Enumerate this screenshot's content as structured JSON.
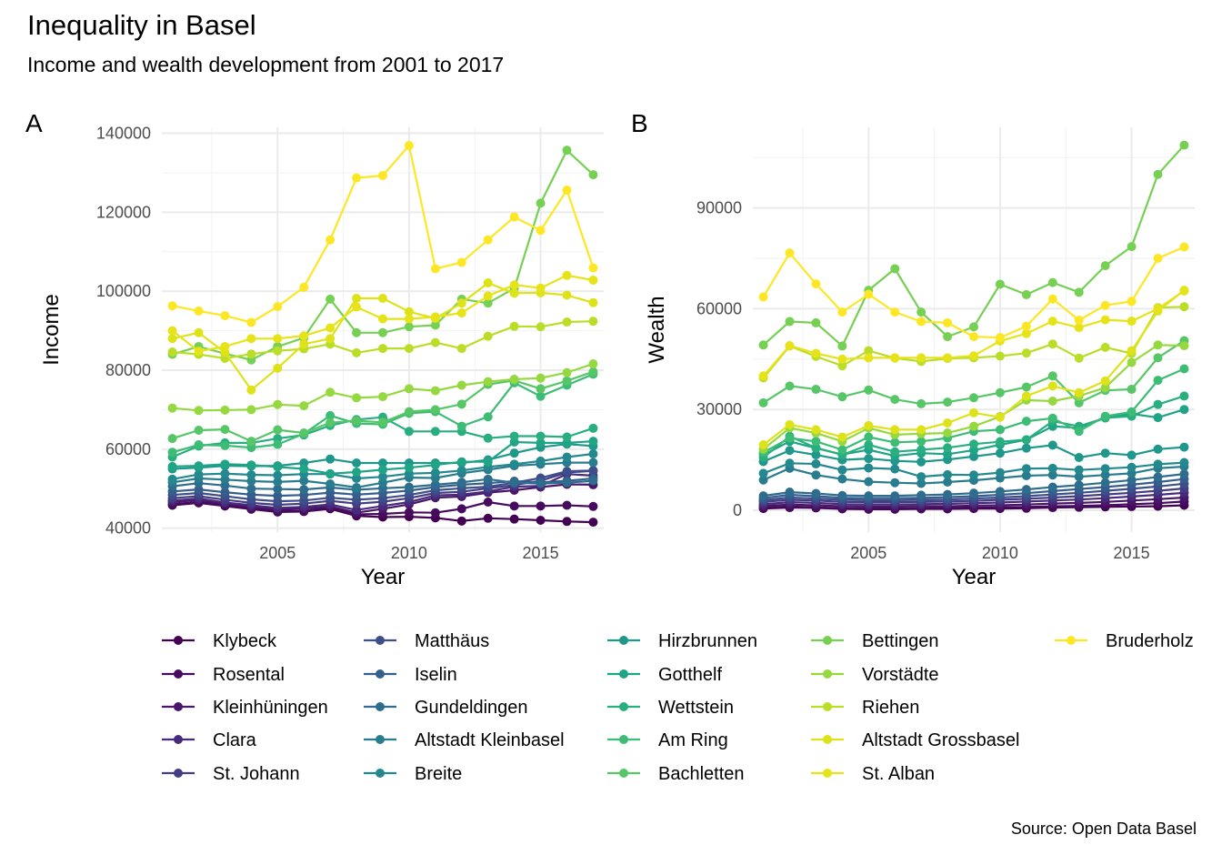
{
  "title": "Inequality in Basel",
  "subtitle": "Income and wealth development from 2001 to 2017",
  "caption": "Source: Open Data Basel",
  "chart_data": [
    {
      "tag": "A",
      "type": "line",
      "xlabel": "Year",
      "ylabel": "Income",
      "xlim": [
        2000.6,
        2017.4
      ],
      "ylim": [
        39000,
        141500
      ],
      "xticks": [
        2005,
        2010,
        2015
      ],
      "yticks": [
        40000,
        60000,
        80000,
        100000,
        120000,
        140000
      ],
      "ytick_labels": [
        "40000",
        "60000",
        "80000",
        "100000",
        "120000",
        "140000"
      ],
      "x": [
        2001,
        2002,
        2003,
        2004,
        2005,
        2006,
        2007,
        2008,
        2009,
        2010,
        2011,
        2012,
        2013,
        2014,
        2015,
        2016,
        2017
      ],
      "series": [
        {
          "name": "Klybeck",
          "values": [
            45800,
            46400,
            45600,
            44800,
            44100,
            44200,
            44900,
            43100,
            42800,
            42900,
            42600,
            41800,
            42500,
            42300,
            42000,
            41700,
            41500
          ]
        },
        {
          "name": "Rosental",
          "values": [
            46100,
            46600,
            45900,
            45000,
            44400,
            44400,
            45200,
            43500,
            43600,
            44000,
            43900,
            44900,
            46600,
            45600,
            45600,
            45800,
            45500
          ]
        },
        {
          "name": "Kleinhüningen",
          "values": [
            46600,
            47100,
            46200,
            45400,
            44800,
            45000,
            45500,
            43900,
            44900,
            46000,
            47700,
            48000,
            49000,
            49600,
            50400,
            51100,
            51000
          ]
        },
        {
          "name": "Clara",
          "values": [
            47000,
            47500,
            46500,
            45800,
            45100,
            45400,
            46000,
            44600,
            45600,
            46600,
            48300,
            48500,
            49300,
            50500,
            50700,
            53700,
            53300
          ]
        },
        {
          "name": "St. Johann",
          "values": [
            47600,
            48100,
            47200,
            46400,
            45900,
            46200,
            46900,
            46200,
            46700,
            47600,
            48900,
            49200,
            50100,
            50900,
            52000,
            54100,
            54500
          ]
        },
        {
          "name": "Matthäus",
          "values": [
            48400,
            48900,
            48100,
            47300,
            46800,
            47000,
            47700,
            47200,
            47600,
            48400,
            49600,
            50100,
            50500,
            51500,
            52700,
            54400,
            54600
          ]
        },
        {
          "name": "Iselin",
          "values": [
            49300,
            49800,
            49100,
            48500,
            48200,
            48400,
            49000,
            48500,
            48900,
            49500,
            50400,
            51000,
            51400,
            51900,
            51600,
            52000,
            52600
          ]
        },
        {
          "name": "Gundeldingen",
          "values": [
            50600,
            51400,
            50800,
            50000,
            49900,
            49800,
            50300,
            49700,
            50100,
            50400,
            51000,
            51600,
            52400,
            51500,
            51300,
            51500,
            52000
          ]
        },
        {
          "name": "Altstadt Kleinbasel",
          "values": [
            51600,
            52600,
            52300,
            51900,
            51700,
            52000,
            51200,
            50300,
            51500,
            52800,
            52700,
            53900,
            54800,
            55800,
            56200,
            56600,
            56600
          ]
        },
        {
          "name": "Breite",
          "values": [
            52400,
            53600,
            53800,
            53500,
            53400,
            53700,
            53700,
            52600,
            53000,
            53800,
            54000,
            54600,
            55500,
            56200,
            57000,
            58000,
            58800
          ]
        },
        {
          "name": "Hirzbrunnen",
          "values": [
            55000,
            55300,
            55800,
            55700,
            55800,
            56500,
            57500,
            56500,
            56500,
            56500,
            56500,
            56500,
            57300,
            59000,
            60500,
            61300,
            60800
          ]
        },
        {
          "name": "Gotthelf",
          "values": [
            55600,
            55800,
            56200,
            56000,
            55500,
            55000,
            53800,
            54200,
            54800,
            55300,
            56000,
            56800,
            56800,
            61800,
            61600,
            61600,
            62000
          ]
        },
        {
          "name": "Wettstein",
          "values": [
            58000,
            60800,
            61600,
            61600,
            62700,
            63600,
            66000,
            67500,
            68100,
            64500,
            64500,
            64500,
            62800,
            63300,
            63300,
            63100,
            65300
          ]
        },
        {
          "name": "Am Ring",
          "values": [
            59200,
            61100,
            60900,
            60400,
            61200,
            63900,
            68500,
            66500,
            66300,
            69100,
            69500,
            65800,
            68200,
            76800,
            73400,
            76200,
            79000
          ]
        },
        {
          "name": "Bachletten",
          "values": [
            62700,
            64800,
            65000,
            62000,
            64900,
            64100,
            66700,
            67200,
            66800,
            69500,
            70000,
            71400,
            76400,
            77400,
            75300,
            77300,
            79600
          ]
        },
        {
          "name": "Bettingen",
          "values": [
            84000,
            86000,
            84200,
            82600,
            86000,
            88200,
            98000,
            89500,
            89500,
            91000,
            91400,
            98000,
            97000,
            100700,
            122300,
            135700,
            129500
          ]
        },
        {
          "name": "Vorstädte",
          "values": [
            70400,
            69800,
            69900,
            70000,
            71300,
            71000,
            74400,
            73000,
            73300,
            75300,
            74800,
            76200,
            77100,
            77700,
            78000,
            79400,
            81600
          ]
        },
        {
          "name": "Riehen",
          "values": [
            84600,
            84000,
            83000,
            84100,
            84900,
            85400,
            86600,
            84400,
            85500,
            85500,
            87000,
            85500,
            88600,
            91100,
            91000,
            92200,
            92400
          ]
        },
        {
          "name": "Altstadt Grossbasel",
          "values": [
            88000,
            89500,
            84500,
            75000,
            80500,
            86600,
            88000,
            98200,
            98200,
            94800,
            93100,
            97000,
            102100,
            99500,
            99600,
            99000,
            97100
          ]
        },
        {
          "name": "St. Albán",
          "values": [
            90000,
            84800,
            86000,
            88000,
            88000,
            88700,
            90700,
            96000,
            93000,
            93000,
            93500,
            94500,
            98800,
            101600,
            100800,
            104000,
            102800
          ]
        },
        {
          "name": "Bruderholz",
          "values": [
            96300,
            95000,
            93800,
            92100,
            96100,
            101000,
            113000,
            128700,
            129300,
            136900,
            105700,
            107300,
            113000,
            118800,
            115400,
            125600,
            105900
          ]
        }
      ]
    },
    {
      "tag": "B",
      "type": "line",
      "xlabel": "Year",
      "ylabel": "Wealth",
      "xlim": [
        2000.6,
        2017.4
      ],
      "ylim": [
        -6500,
        114000
      ],
      "xticks": [
        2005,
        2010,
        2015
      ],
      "yticks": [
        0,
        30000,
        60000,
        90000
      ],
      "ytick_labels": [
        "0",
        "30000",
        "60000",
        "90000"
      ],
      "x": [
        2001,
        2002,
        2003,
        2004,
        2005,
        2006,
        2007,
        2008,
        2009,
        2010,
        2011,
        2012,
        2013,
        2014,
        2015,
        2016,
        2017
      ],
      "series": [
        {
          "name": "Klybeck",
          "values": [
            500,
            800,
            700,
            400,
            300,
            300,
            400,
            400,
            500,
            500,
            600,
            800,
            900,
            1000,
            1100,
            1200,
            1500
          ]
        },
        {
          "name": "Rosental",
          "values": [
            800,
            1100,
            900,
            600,
            500,
            500,
            600,
            700,
            800,
            900,
            1000,
            1200,
            1300,
            1500,
            1800,
            2100,
            2600
          ]
        },
        {
          "name": "Kleinhüningen",
          "values": [
            1300,
            1700,
            1500,
            1200,
            1100,
            1100,
            1200,
            1200,
            1400,
            1500,
            1700,
            2000,
            2200,
            2500,
            2900,
            3300,
            3800
          ]
        },
        {
          "name": "Clara",
          "values": [
            1800,
            2400,
            2200,
            1800,
            1700,
            1700,
            1800,
            1900,
            2100,
            2300,
            2600,
            2900,
            3200,
            3600,
            4100,
            4600,
            5200
          ]
        },
        {
          "name": "St. Johann",
          "values": [
            2500,
            3100,
            2900,
            2500,
            2400,
            2400,
            2500,
            2600,
            2800,
            3100,
            3400,
            3800,
            4200,
            4700,
            5200,
            5800,
            6500
          ]
        },
        {
          "name": "Matthäus",
          "values": [
            3000,
            3800,
            3500,
            3100,
            3000,
            3000,
            3100,
            3200,
            3500,
            3800,
            4200,
            4700,
            5200,
            5800,
            6400,
            7100,
            7900
          ]
        },
        {
          "name": "Iselin",
          "values": [
            3600,
            4600,
            4200,
            3700,
            3600,
            3600,
            3700,
            3900,
            4200,
            4600,
            5100,
            5700,
            6300,
            6900,
            7600,
            8400,
            9300
          ]
        },
        {
          "name": "Gundeldingen",
          "values": [
            4300,
            5400,
            5000,
            4400,
            4300,
            4300,
            4500,
            4700,
            5100,
            5600,
            6200,
            6900,
            7500,
            8200,
            9000,
            9900,
            10800
          ]
        },
        {
          "name": "Altstadt Kleinbasel",
          "values": [
            9000,
            12500,
            10500,
            9300,
            8500,
            8200,
            8000,
            8400,
            8900,
            9600,
            10300,
            10500,
            10000,
            10500,
            11000,
            12500,
            13000
          ]
        },
        {
          "name": "Breite",
          "values": [
            11000,
            14000,
            13800,
            12000,
            12600,
            12300,
            10000,
            10600,
            10500,
            11200,
            12400,
            12500,
            12000,
            12400,
            12800,
            13700,
            14200
          ]
        },
        {
          "name": "Hirzbrunnen",
          "values": [
            14500,
            17800,
            16500,
            15000,
            15400,
            14700,
            14400,
            15100,
            16000,
            17000,
            18500,
            19400,
            15700,
            17000,
            16400,
            18200,
            18800
          ]
        },
        {
          "name": "Gotthelf",
          "values": [
            16500,
            20500,
            18500,
            16600,
            18000,
            16200,
            17000,
            16700,
            17900,
            19500,
            21000,
            25000,
            24500,
            27500,
            28700,
            27600,
            30000
          ]
        },
        {
          "name": "Wettstein",
          "values": [
            15700,
            22000,
            18600,
            16500,
            19500,
            17400,
            18000,
            18600,
            19700,
            20400,
            21000,
            26500,
            25000,
            27500,
            28000,
            31500,
            34000
          ]
        },
        {
          "name": "Am Ring",
          "values": [
            17200,
            21500,
            20500,
            18000,
            21800,
            20200,
            20500,
            21500,
            23500,
            24000,
            26500,
            27400,
            23500,
            28000,
            29300,
            38700,
            42100
          ]
        },
        {
          "name": "Bachletten",
          "values": [
            32000,
            37000,
            36000,
            33800,
            35800,
            33000,
            31700,
            32200,
            33500,
            35000,
            36700,
            40000,
            32000,
            35700,
            36000,
            45400,
            50500
          ]
        },
        {
          "name": "Bettingen",
          "values": [
            49200,
            56200,
            55800,
            48900,
            65500,
            71900,
            59000,
            51700,
            54600,
            67300,
            64200,
            67800,
            64900,
            72800,
            78500,
            100000,
            108700
          ]
        },
        {
          "name": "Vorstädte",
          "values": [
            18200,
            24500,
            23000,
            20500,
            24500,
            22500,
            22800,
            23000,
            25000,
            27900,
            32800,
            32500,
            34000,
            36500,
            44000,
            49200,
            49000
          ]
        },
        {
          "name": "Riehen",
          "values": [
            39400,
            48900,
            45800,
            43000,
            47500,
            45300,
            44300,
            45200,
            45400,
            45900,
            46800,
            49500,
            45300,
            48500,
            46700,
            60300,
            60600
          ]
        },
        {
          "name": "Altstadt Grossbasel",
          "values": [
            19500,
            25500,
            24000,
            21800,
            25200,
            24000,
            24000,
            26000,
            29000,
            27700,
            34000,
            37000,
            35000,
            38500,
            47500,
            59300,
            65500
          ]
        },
        {
          "name": "St. Albán",
          "values": [
            40000,
            49000,
            46700,
            45000,
            45400,
            45400,
            45400,
            45400,
            46000,
            50400,
            52600,
            56300,
            54400,
            56700,
            56300,
            60000,
            65300
          ]
        },
        {
          "name": "Bruderholz",
          "values": [
            63500,
            76600,
            67400,
            59000,
            64300,
            59000,
            56200,
            55800,
            51700,
            51400,
            54800,
            62900,
            56600,
            61000,
            62200,
            75000,
            78400
          ]
        }
      ]
    }
  ],
  "legend": {
    "items": [
      "Klybeck",
      "Rosental",
      "Kleinhüningen",
      "Clara",
      "St. Johann",
      "Matthäus",
      "Iselin",
      "Gundeldingen",
      "Altstadt Kleinbasel",
      "Breite",
      "Hirzbrunnen",
      "Gotthelf",
      "Wettstein",
      "Am Ring",
      "Bachletten",
      "Bettingen",
      "Vorstädte",
      "Riehen",
      "Altstadt Grossbasel",
      "St. Alban",
      "Bruderholz"
    ],
    "colors": [
      "#440154",
      "#470E61",
      "#481B6D",
      "#46337E",
      "#3F4889",
      "#365C8D",
      "#2E6E8E",
      "#277F8E",
      "#21908C",
      "#1FA187",
      "#2DB27D",
      "#4AC16D",
      "#71CF57",
      "#9FDA3A",
      "#CFE11C",
      "#FDE725",
      "#2DB27D",
      "#71CF57",
      "#9FDA3A",
      "#CFE11C",
      "#FDE725"
    ],
    "palette": [
      "#440154",
      "#460B5E",
      "#481769",
      "#472A7A",
      "#433D84",
      "#3D4E8A",
      "#355E8D",
      "#2E6D8E",
      "#297B8E",
      "#23898E",
      "#1F978B",
      "#20A486",
      "#29AF7F",
      "#3CBC74",
      "#56C667",
      "#75D054",
      "#95D840",
      "#BADE28",
      "#DDE318",
      "#E6E419",
      "#FDE725"
    ]
  }
}
